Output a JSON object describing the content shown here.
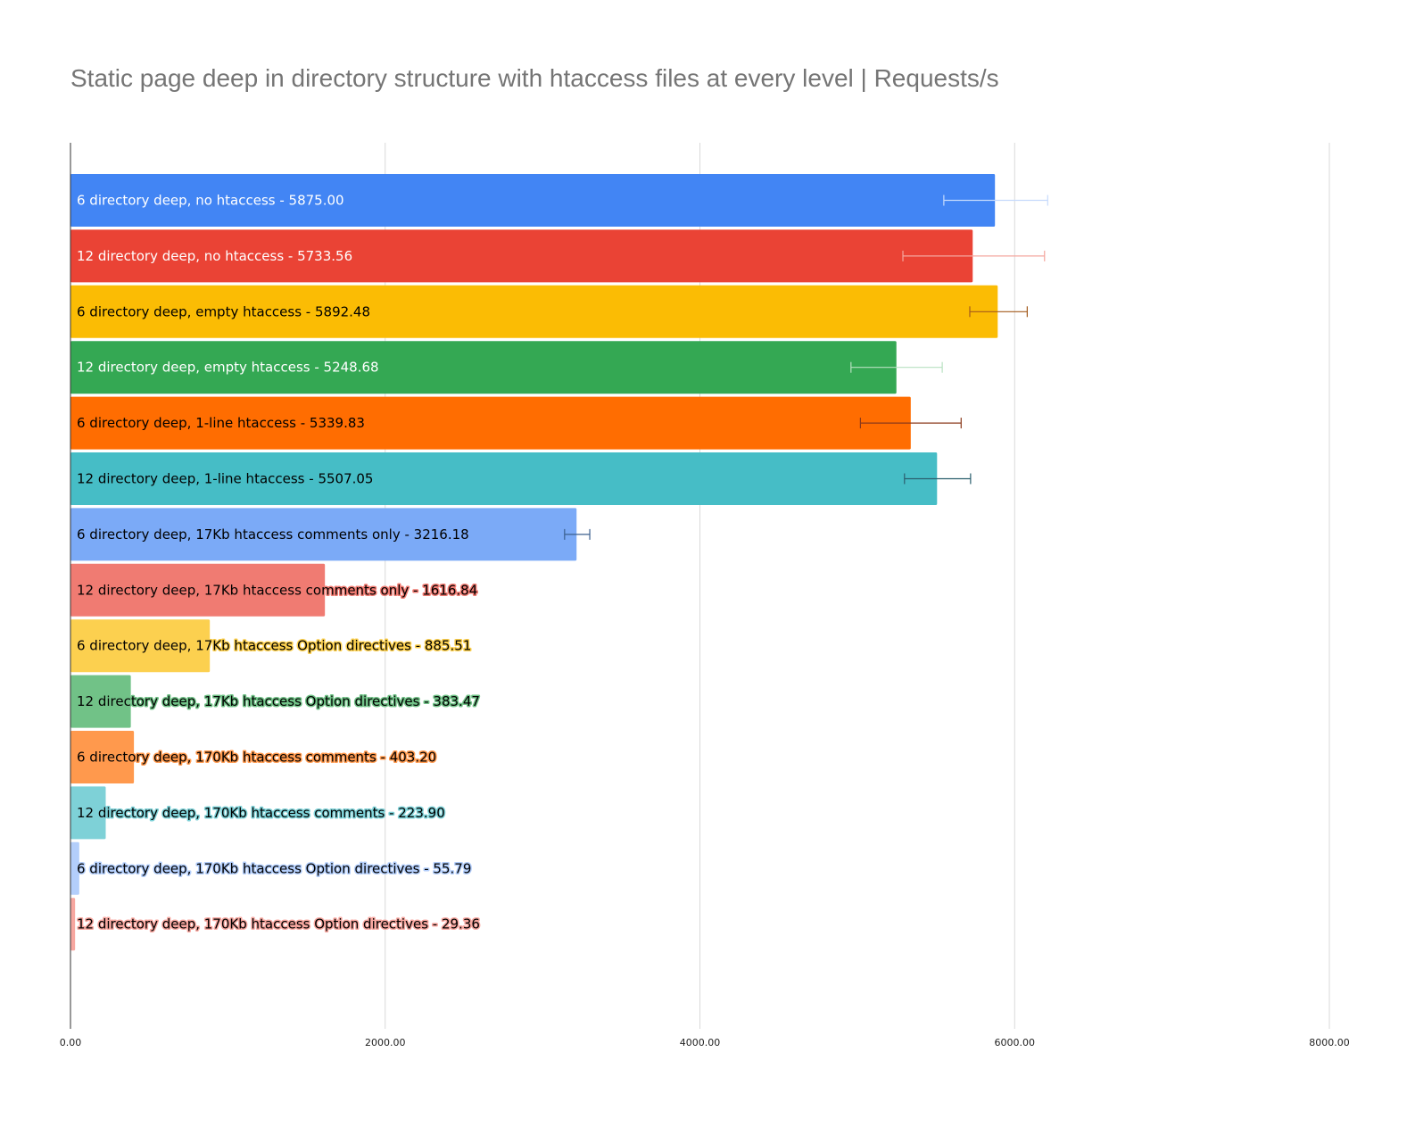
{
  "chart_data": {
    "type": "bar",
    "orientation": "horizontal",
    "title": "Static page deep in directory structure with htaccess files at every level | Requests/s",
    "xlabel": "",
    "ylabel": "",
    "xlim": [
      0,
      8000
    ],
    "x_ticks": [
      0,
      2000,
      4000,
      6000,
      8000
    ],
    "x_tick_labels": [
      "0.00",
      "2000.00",
      "4000.00",
      "6000.00",
      "8000.00"
    ],
    "grid": true,
    "legend": "none",
    "bars": [
      {
        "label": "6 directory deep, no htaccess - 5875.00",
        "value": 5875.0,
        "error_low": 5550,
        "error_high": 6210,
        "color": "#4285f4",
        "error_color": "#c6dafc",
        "text_color": "#ffffff"
      },
      {
        "label": "12 directory deep, no htaccess - 5733.56",
        "value": 5733.56,
        "error_low": 5290,
        "error_high": 6190,
        "color": "#ea4335",
        "error_color": "#f4a79f",
        "text_color": "#ffffff"
      },
      {
        "label": "6 directory deep, empty htaccess - 5892.48",
        "value": 5892.48,
        "error_low": 5715,
        "error_high": 6080,
        "color": "#fbbc04",
        "error_color": "#a35a1b",
        "text_color": "#000000"
      },
      {
        "label": "12 directory deep, empty htaccess - 5248.68",
        "value": 5248.68,
        "error_low": 4960,
        "error_high": 5540,
        "color": "#34a853",
        "error_color": "#b7e1c1",
        "text_color": "#ffffff"
      },
      {
        "label": "6 directory deep, 1-line htaccess - 5339.83",
        "value": 5339.83,
        "error_low": 5020,
        "error_high": 5660,
        "color": "#ff6d01",
        "error_color": "#8b3a1b",
        "text_color": "#000000"
      },
      {
        "label": "12 directory deep, 1-line htaccess - 5507.05",
        "value": 5507.05,
        "error_low": 5300,
        "error_high": 5720,
        "color": "#46bdc6",
        "error_color": "#2b5f6e",
        "text_color": "#000000"
      },
      {
        "label": "6 directory deep, 17Kb htaccess comments only - 3216.18",
        "value": 3216.18,
        "error_low": 3140,
        "error_high": 3300,
        "color": "#7baaf7",
        "error_color": "#3b5f8e",
        "text_color": "#000000"
      },
      {
        "label": "12 directory deep, 17Kb htaccess comments only - 1616.84",
        "value": 1616.84,
        "color": "#f07b72",
        "text_color": "#000000"
      },
      {
        "label": "6 directory deep, 17Kb htaccess Option directives - 885.51",
        "value": 885.51,
        "color": "#fcd04f",
        "text_color": "#000000"
      },
      {
        "label": "12 directory deep, 17Kb htaccess Option directives - 383.47",
        "value": 383.47,
        "color": "#71c287",
        "text_color": "#000000"
      },
      {
        "label": "6 directory deep, 170Kb htaccess comments - 403.20",
        "value": 403.2,
        "color": "#ff994d",
        "text_color": "#000000"
      },
      {
        "label": "12 directory deep, 170Kb htaccess comments - 223.90",
        "value": 223.9,
        "color": "#7ed1d7",
        "text_color": "#000000"
      },
      {
        "label": "6 directory deep, 170Kb htaccess Option directives - 55.79",
        "value": 55.79,
        "color": "#b3cefb",
        "text_color": "#000000"
      },
      {
        "label": "12 directory deep, 170Kb htaccess Option directives - 29.36",
        "value": 29.36,
        "color": "#f7a7a0",
        "text_color": "#000000"
      }
    ]
  }
}
